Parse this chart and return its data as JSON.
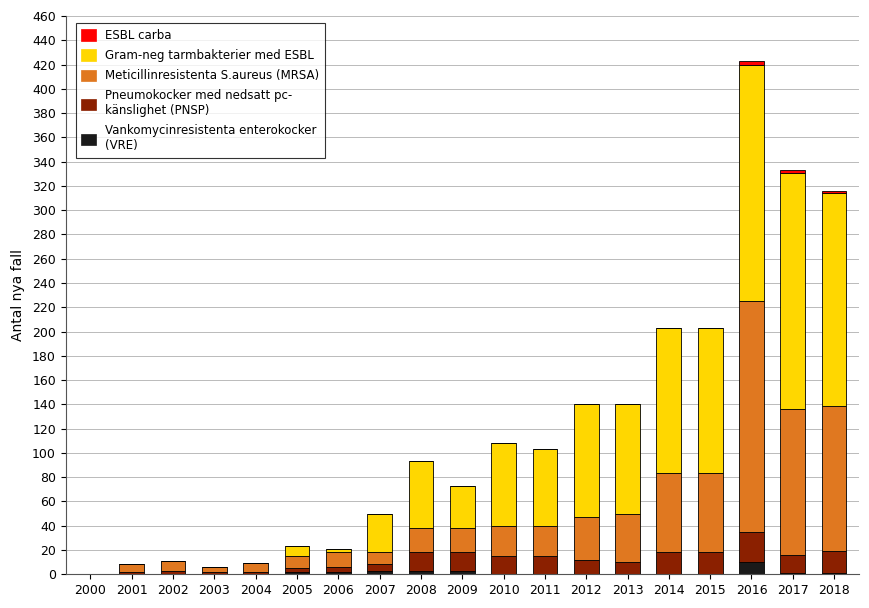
{
  "years": [
    2000,
    2001,
    2002,
    2003,
    2004,
    2005,
    2006,
    2007,
    2008,
    2009,
    2010,
    2011,
    2012,
    2013,
    2014,
    2015,
    2016,
    2017,
    2018
  ],
  "esbl_carba": [
    0,
    0,
    0,
    0,
    0,
    0,
    0,
    0,
    0,
    0,
    0,
    0,
    0,
    0,
    0,
    0,
    3,
    2,
    2
  ],
  "gram_neg_esbl": [
    0,
    0,
    0,
    0,
    0,
    8,
    3,
    32,
    55,
    35,
    68,
    63,
    93,
    90,
    120,
    120,
    195,
    195,
    175
  ],
  "mrsa": [
    0,
    6,
    8,
    4,
    7,
    10,
    12,
    10,
    20,
    20,
    25,
    25,
    35,
    40,
    65,
    65,
    190,
    120,
    120
  ],
  "pnsp": [
    0,
    2,
    3,
    2,
    2,
    3,
    4,
    5,
    15,
    15,
    15,
    15,
    12,
    10,
    18,
    18,
    25,
    15,
    18
  ],
  "vre": [
    0,
    0,
    0,
    0,
    0,
    2,
    2,
    3,
    3,
    3,
    0,
    0,
    0,
    0,
    0,
    0,
    10,
    1,
    1
  ],
  "colors": {
    "esbl_carba": "#ff0000",
    "gram_neg_esbl": "#ffd700",
    "mrsa": "#e07820",
    "pnsp": "#8B2000",
    "vre": "#1a1a1a"
  },
  "legend_labels": [
    "ESBL carba",
    "Gram-neg tarmbakterier med ESBL",
    "Meticillinresistenta S.aureus (MRSA)",
    "Pneumokocker med nedsatt pc-\nkänslighet (PNSP)",
    "Vankomycinresistenta enterokocker\n(VRE)"
  ],
  "ylabel": "Antal nya fall",
  "ylim": [
    0,
    460
  ],
  "yticks": [
    0,
    20,
    40,
    60,
    80,
    100,
    120,
    140,
    160,
    180,
    200,
    220,
    240,
    260,
    280,
    300,
    320,
    340,
    360,
    380,
    400,
    420,
    440,
    460
  ],
  "background_color": "#ffffff",
  "plot_background": "#ffffff",
  "grid_color": "#b0b0b0",
  "bar_edge_color": "#000000"
}
